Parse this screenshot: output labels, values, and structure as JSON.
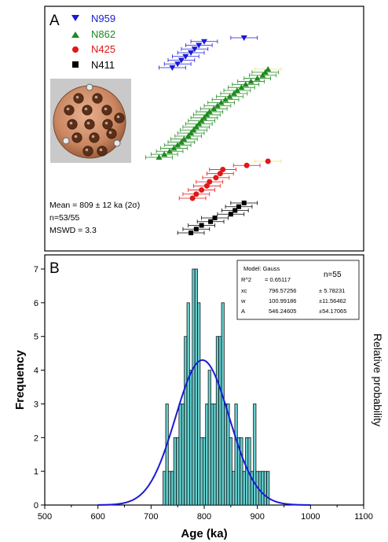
{
  "colors": {
    "N959": "#1a1ad6",
    "N862": "#1f8a1f",
    "N425": "#e01818",
    "N411": "#000000",
    "highlight": "#f2e35a",
    "bar_fill": "#66cccc",
    "gauss_line": "#1a1ad6"
  },
  "panel_a": {
    "letter": "A",
    "legend": [
      {
        "label": "N959",
        "marker": "triangle-down",
        "color": "#1a1ad6"
      },
      {
        "label": "N862",
        "marker": "triangle-up",
        "color": "#1f8a1f"
      },
      {
        "label": "N425",
        "marker": "circle",
        "color": "#e01818"
      },
      {
        "label": "N411",
        "marker": "square",
        "color": "#000000"
      }
    ],
    "stats": {
      "mean": "Mean = 809 ± 12 ka (2σ)",
      "n": "n=53/55",
      "mswd": "MSWD = 3.3"
    },
    "photo": "sample-mount-photo"
  },
  "chart_data": [
    {
      "type": "scatter",
      "panel": "A",
      "description_shared_x": "Age (ka), same axis as panel B",
      "series": [
        {
          "name": "N959",
          "ages": [
            740,
            750,
            757,
            765,
            775,
            782,
            790,
            800,
            875
          ]
        },
        {
          "name": "N862",
          "ages": [
            715,
            725,
            735,
            743,
            750,
            757,
            762,
            770,
            775,
            780,
            785,
            790,
            795,
            800,
            805,
            810,
            818,
            825,
            832,
            840,
            848,
            856,
            862,
            870,
            878,
            888,
            900,
            910,
            915,
            920
          ]
        },
        {
          "name": "N425",
          "ages": [
            778,
            785,
            795,
            805,
            810,
            822,
            830,
            835,
            880,
            920
          ]
        },
        {
          "name": "N411",
          "ages": [
            775,
            785,
            795,
            812,
            820,
            850,
            858,
            865,
            875
          ]
        }
      ]
    },
    {
      "type": "bar",
      "panel": "B",
      "letter": "B",
      "xlabel": "Age (ka)",
      "ylabel": "Frequency",
      "y2label": "Relative probability",
      "xlim": [
        500,
        1100
      ],
      "ylim": [
        0,
        7
      ],
      "xticks": [
        500,
        600,
        700,
        800,
        900,
        1000,
        1100
      ],
      "yticks": [
        0,
        1,
        2,
        3,
        4,
        5,
        6,
        7
      ],
      "bin_width": 5,
      "bins": [
        {
          "x": 725,
          "count": 1
        },
        {
          "x": 730,
          "count": 3
        },
        {
          "x": 735,
          "count": 1
        },
        {
          "x": 740,
          "count": 1
        },
        {
          "x": 745,
          "count": 2
        },
        {
          "x": 750,
          "count": 2
        },
        {
          "x": 755,
          "count": 3
        },
        {
          "x": 760,
          "count": 3
        },
        {
          "x": 765,
          "count": 5
        },
        {
          "x": 770,
          "count": 6
        },
        {
          "x": 775,
          "count": 4
        },
        {
          "x": 780,
          "count": 7
        },
        {
          "x": 785,
          "count": 7
        },
        {
          "x": 790,
          "count": 6
        },
        {
          "x": 795,
          "count": 2
        },
        {
          "x": 800,
          "count": 2
        },
        {
          "x": 805,
          "count": 3
        },
        {
          "x": 810,
          "count": 4
        },
        {
          "x": 815,
          "count": 3
        },
        {
          "x": 820,
          "count": 3
        },
        {
          "x": 825,
          "count": 5
        },
        {
          "x": 830,
          "count": 5
        },
        {
          "x": 835,
          "count": 6
        },
        {
          "x": 840,
          "count": 3
        },
        {
          "x": 845,
          "count": 3
        },
        {
          "x": 850,
          "count": 2
        },
        {
          "x": 855,
          "count": 1
        },
        {
          "x": 860,
          "count": 3
        },
        {
          "x": 865,
          "count": 2
        },
        {
          "x": 870,
          "count": 2
        },
        {
          "x": 875,
          "count": 1
        },
        {
          "x": 880,
          "count": 2
        },
        {
          "x": 885,
          "count": 2
        },
        {
          "x": 890,
          "count": 1
        },
        {
          "x": 895,
          "count": 3
        },
        {
          "x": 900,
          "count": 1
        },
        {
          "x": 905,
          "count": 1
        },
        {
          "x": 910,
          "count": 1
        },
        {
          "x": 915,
          "count": 1
        },
        {
          "x": 920,
          "count": 1
        }
      ],
      "gauss_fit": {
        "xc": 796.57256,
        "w": 100.99186,
        "A": 546.24605,
        "peak_frequency": 4.3
      },
      "fit_box": {
        "model": "Model: Gauss",
        "n": "n=55",
        "rows": [
          {
            "name": "R^2",
            "value": "= 0.65117",
            "err": ""
          },
          {
            "name": "xc",
            "value": "796.57256",
            "err": "± 5.78231"
          },
          {
            "name": "w",
            "value": "100.99186",
            "err": "±11.56462"
          },
          {
            "name": "A",
            "value": "546.24605",
            "err": "±54.17065"
          }
        ]
      }
    }
  ]
}
